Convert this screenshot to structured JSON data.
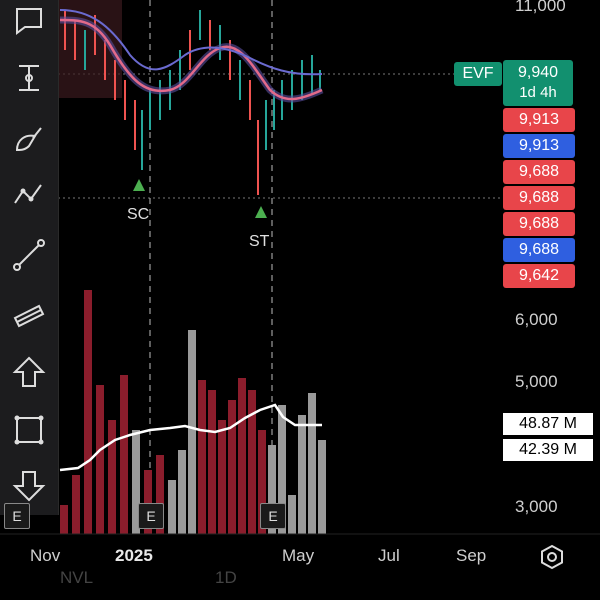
{
  "toolbar": {
    "tools": [
      {
        "name": "comment-icon"
      },
      {
        "name": "measure-icon"
      },
      {
        "name": "brush-icon"
      },
      {
        "name": "path-icon"
      },
      {
        "name": "trendline-icon"
      },
      {
        "name": "channel-icon"
      },
      {
        "name": "arrow-up-icon"
      },
      {
        "name": "rectangle-icon"
      },
      {
        "name": "arrow-down-icon"
      }
    ]
  },
  "price_axis": {
    "labels": [
      "11,000",
      "6,000",
      "5,000",
      "3,000"
    ]
  },
  "price_tags": {
    "evf_label": "EVF",
    "evf_price": "9,940",
    "evf_time": "1d 4h",
    "levels": [
      {
        "value": "9,913",
        "color": "#e8454a"
      },
      {
        "value": "9,913",
        "color": "#2f5fe0"
      },
      {
        "value": "9,688",
        "color": "#e8454a"
      },
      {
        "value": "9,688",
        "color": "#e8454a"
      },
      {
        "value": "9,688",
        "color": "#e8454a"
      },
      {
        "value": "9,688",
        "color": "#2f5fe0"
      },
      {
        "value": "9,642",
        "color": "#e8454a"
      }
    ]
  },
  "volume_tags": [
    "48.87 M",
    "42.39 M"
  ],
  "x_axis": {
    "labels": [
      "Nov",
      "2025",
      "May",
      "Jul",
      "Sep"
    ]
  },
  "markers": {
    "sc": "SC",
    "st": "ST",
    "event": "E"
  },
  "bottom_faded": [
    "NVL",
    "1D"
  ],
  "colors": {
    "up": "#26a69a",
    "down": "#ef5350",
    "volume_down": "#8b1d2c",
    "volume_up": "#9a9a9a",
    "ma_fast": "#c2486a",
    "ma_slow": "#6a6ad0",
    "evf": "#12906f"
  }
}
